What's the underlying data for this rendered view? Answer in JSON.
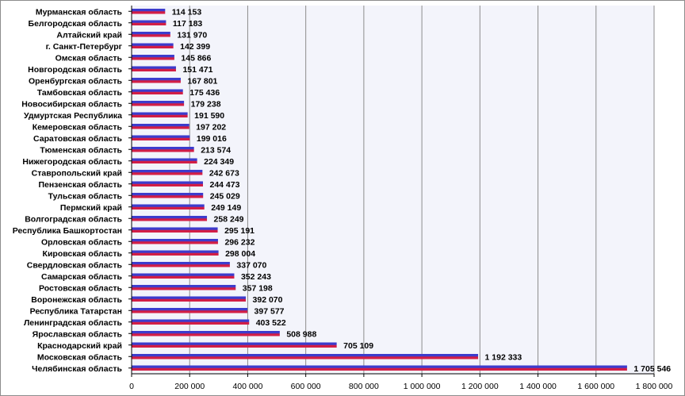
{
  "chart_data": {
    "type": "bar",
    "orientation": "horizontal",
    "title": "",
    "xlabel": "",
    "ylabel": "",
    "xlim": [
      0,
      1800000
    ],
    "grid": true,
    "legend": "none",
    "colors": {
      "bar_top": "#3c3ccd",
      "bar_bottom": "#d21e46",
      "plot_bg": "#f3f4fb",
      "grid": "#8c8c8c"
    },
    "categories": [
      "Мурманская область",
      "Белгородская область",
      "Алтайский край",
      "г. Санкт-Петербург",
      "Омская область",
      "Новгородская область",
      "Оренбургская область",
      "Тамбовская область",
      "Новосибирская область",
      "Удмуртская Республика",
      "Кемеровская область",
      "Саратовская область",
      "Тюменская область",
      "Нижегородская область",
      "Ставропольский край",
      "Пензенская область",
      "Тульская область",
      "Пермский край",
      "Волгоградская область",
      "Республика Башкортостан",
      "Орловская область",
      "Кировская область",
      "Свердловская область",
      "Самарская область",
      "Ростовская область",
      "Воронежская область",
      "Республика Татарстан",
      "Ленинградская область",
      "Ярославская область",
      "Краснодарский край",
      "Московская область",
      "Челябинская область"
    ],
    "values": [
      114153,
      117183,
      131970,
      142399,
      145866,
      151471,
      167801,
      175436,
      179238,
      191590,
      197202,
      199016,
      213574,
      224349,
      242673,
      244473,
      245029,
      249149,
      258249,
      295191,
      296232,
      298004,
      337070,
      352243,
      357198,
      392070,
      397577,
      403522,
      508988,
      705109,
      1192333,
      1705546
    ],
    "value_labels": [
      "114 153",
      "117 183",
      "131 970",
      "142 399",
      "145 866",
      "151 471",
      "167 801",
      "175 436",
      "179 238",
      "191 590",
      "197 202",
      "199 016",
      "213 574",
      "224 349",
      "242 673",
      "244 473",
      "245 029",
      "249 149",
      "258 249",
      "295 191",
      "296 232",
      "298 004",
      "337 070",
      "352 243",
      "357 198",
      "392 070",
      "397 577",
      "403 522",
      "508 988",
      "705 109",
      "1 192 333",
      "1 705 546"
    ],
    "x_ticks": [
      0,
      200000,
      400000,
      600000,
      800000,
      1000000,
      1200000,
      1400000,
      1600000,
      1800000
    ],
    "x_tick_labels": [
      "0",
      "200 000",
      "400 000",
      "600 000",
      "800 000",
      "1 000 000",
      "1 200 000",
      "1 400 000",
      "1 600 000",
      "1 800 000"
    ]
  }
}
